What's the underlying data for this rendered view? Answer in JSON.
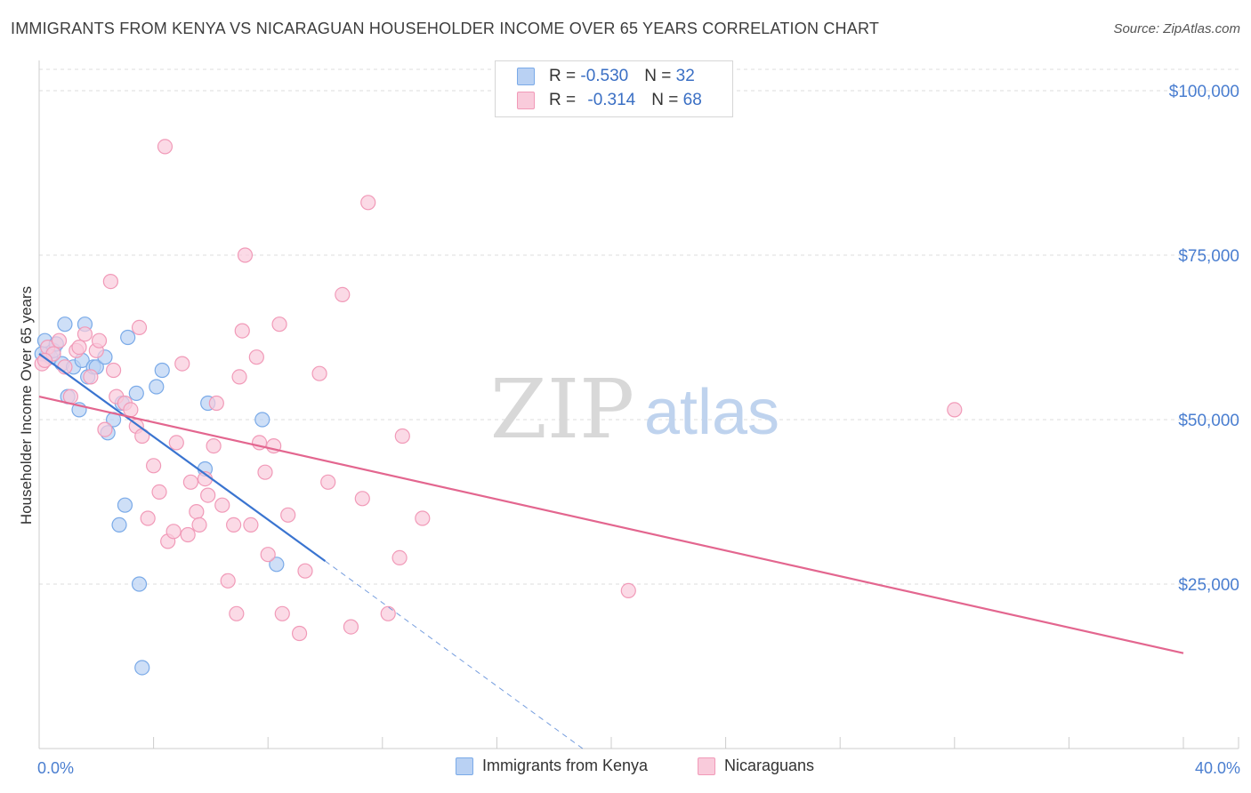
{
  "chart_data": {
    "type": "scatter",
    "title": "IMMIGRANTS FROM KENYA VS NICARAGUAN HOUSEHOLDER INCOME OVER 65 YEARS CORRELATION CHART",
    "source": "Source: ZipAtlas.com",
    "xlabel": "",
    "ylabel": "Householder Income Over 65 years",
    "xlim": [
      0,
      40
    ],
    "ylim": [
      0,
      105000
    ],
    "x_tick_labels": [
      "0.0%",
      "40.0%"
    ],
    "y_ticks": [
      25000,
      50000,
      75000,
      100000
    ],
    "y_tick_labels": [
      "$25,000",
      "$50,000",
      "$75,000",
      "$100,000"
    ],
    "watermark": {
      "part1": "ZIP",
      "part2": "atlas"
    },
    "legend": {
      "rows": [
        {
          "r_label": "R = ",
          "r_value": "-0.530",
          "n_label": "N = ",
          "n_value": "32"
        },
        {
          "r_label": "R = ",
          "r_value": "-0.314",
          "n_label": "N = ",
          "n_value": "68"
        }
      ]
    },
    "series": [
      {
        "name": "Immigrants from Kenya",
        "color": "#7aaae8",
        "fill": "#b9d1f3",
        "line_color": "#3a74d0",
        "trend": {
          "x0": 0,
          "y0": 60000,
          "x1": 10,
          "y1": 28500,
          "dashed_to_x": 19,
          "dashed_to_y": 0
        },
        "points": [
          [
            0.2,
            62000
          ],
          [
            0.3,
            60000
          ],
          [
            0.4,
            59500
          ],
          [
            0.5,
            60500
          ],
          [
            0.6,
            61500
          ],
          [
            0.8,
            58500
          ],
          [
            0.9,
            64500
          ],
          [
            1.0,
            53500
          ],
          [
            1.2,
            58000
          ],
          [
            1.4,
            51500
          ],
          [
            1.5,
            59000
          ],
          [
            1.6,
            64500
          ],
          [
            1.7,
            56500
          ],
          [
            1.9,
            58000
          ],
          [
            2.0,
            58000
          ],
          [
            2.3,
            59500
          ],
          [
            2.4,
            48000
          ],
          [
            2.6,
            50000
          ],
          [
            2.8,
            34000
          ],
          [
            2.9,
            52500
          ],
          [
            3.0,
            37000
          ],
          [
            3.1,
            62500
          ],
          [
            3.4,
            54000
          ],
          [
            3.5,
            25000
          ],
          [
            3.6,
            12300
          ],
          [
            4.1,
            55000
          ],
          [
            4.3,
            57500
          ],
          [
            5.8,
            42500
          ],
          [
            5.9,
            52500
          ],
          [
            7.8,
            50000
          ],
          [
            8.3,
            28000
          ],
          [
            0.1,
            60000
          ]
        ]
      },
      {
        "name": "Nicaraguans",
        "color": "#f19ab8",
        "fill": "#f9cbdb",
        "line_color": "#e3668f",
        "trend": {
          "x0": 0,
          "y0": 53500,
          "x1": 40,
          "y1": 14500
        },
        "points": [
          [
            0.1,
            58500
          ],
          [
            0.3,
            61000
          ],
          [
            0.5,
            60000
          ],
          [
            0.7,
            62000
          ],
          [
            0.9,
            58000
          ],
          [
            1.1,
            53500
          ],
          [
            1.3,
            60500
          ],
          [
            1.6,
            63000
          ],
          [
            1.8,
            56500
          ],
          [
            2.0,
            60500
          ],
          [
            2.1,
            62000
          ],
          [
            2.3,
            48500
          ],
          [
            2.5,
            71000
          ],
          [
            2.6,
            57500
          ],
          [
            2.7,
            53500
          ],
          [
            3.0,
            52500
          ],
          [
            3.2,
            51500
          ],
          [
            3.4,
            49000
          ],
          [
            3.5,
            64000
          ],
          [
            3.6,
            47500
          ],
          [
            3.8,
            35000
          ],
          [
            4.0,
            43000
          ],
          [
            4.2,
            39000
          ],
          [
            4.4,
            91500
          ],
          [
            4.5,
            31500
          ],
          [
            4.7,
            33000
          ],
          [
            4.8,
            46500
          ],
          [
            5.0,
            58500
          ],
          [
            5.2,
            32500
          ],
          [
            5.3,
            40500
          ],
          [
            5.5,
            36000
          ],
          [
            5.6,
            34000
          ],
          [
            5.8,
            41000
          ],
          [
            5.9,
            38500
          ],
          [
            6.1,
            46000
          ],
          [
            6.2,
            52500
          ],
          [
            6.4,
            37000
          ],
          [
            6.6,
            25500
          ],
          [
            6.8,
            34000
          ],
          [
            6.9,
            20500
          ],
          [
            7.0,
            56500
          ],
          [
            7.1,
            63500
          ],
          [
            7.2,
            75000
          ],
          [
            7.4,
            34000
          ],
          [
            7.6,
            59500
          ],
          [
            7.7,
            46500
          ],
          [
            7.9,
            42000
          ],
          [
            8.0,
            29500
          ],
          [
            8.2,
            46000
          ],
          [
            8.4,
            64500
          ],
          [
            8.5,
            20500
          ],
          [
            8.7,
            35500
          ],
          [
            9.1,
            17500
          ],
          [
            9.3,
            27000
          ],
          [
            9.8,
            57000
          ],
          [
            10.1,
            40500
          ],
          [
            10.6,
            69000
          ],
          [
            10.9,
            18500
          ],
          [
            11.3,
            38000
          ],
          [
            11.5,
            83000
          ],
          [
            12.2,
            20500
          ],
          [
            12.6,
            29000
          ],
          [
            12.7,
            47500
          ],
          [
            13.4,
            35000
          ],
          [
            20.6,
            24000
          ],
          [
            32.0,
            51500
          ],
          [
            0.2,
            59000
          ],
          [
            1.4,
            61000
          ]
        ]
      }
    ]
  }
}
